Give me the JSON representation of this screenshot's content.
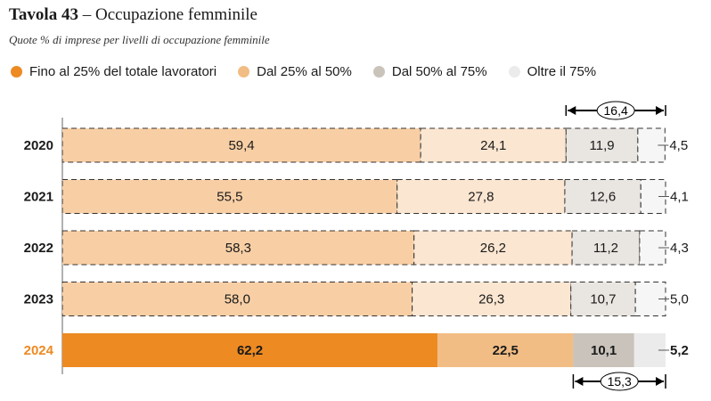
{
  "title": {
    "bold": "Tavola 43",
    "rest": " – Occupazione femminile"
  },
  "subtitle": "Quote % di imprese per livelli di occupazione femminile",
  "colors": {
    "solid": [
      "#ed8a22",
      "#f1bd84",
      "#c9c3bb",
      "#ebebeb"
    ],
    "light": [
      "#f8cfa5",
      "#fbe6d1",
      "#e9e5e1",
      "#f6f6f6"
    ],
    "highlight_year": "#ed8a22"
  },
  "chart_data": {
    "type": "bar",
    "orientation": "horizontal",
    "stacked": true,
    "categories": [
      "2020",
      "2021",
      "2022",
      "2023",
      "2024"
    ],
    "series": [
      {
        "name": "Fino al 25% del totale lavoratori",
        "values": [
          59.4,
          55.5,
          58.3,
          58.0,
          62.2
        ],
        "labels": [
          "59,4",
          "55,5",
          "58,3",
          "58,0",
          "62,2"
        ]
      },
      {
        "name": "Dal 25% al 50%",
        "values": [
          24.1,
          27.8,
          26.2,
          26.3,
          22.5
        ],
        "labels": [
          "24,1",
          "27,8",
          "26,2",
          "26,3",
          "22,5"
        ]
      },
      {
        "name": "Dal 50% al 75%",
        "values": [
          11.9,
          12.6,
          11.2,
          10.7,
          10.1
        ],
        "labels": [
          "11,9",
          "12,6",
          "11,2",
          "10,7",
          "10,1"
        ]
      },
      {
        "name": "Oltre il 75%",
        "values": [
          4.5,
          4.1,
          4.3,
          5.0,
          5.2
        ],
        "labels": [
          "4,5",
          "4,1",
          "4,3",
          "5,0",
          "5,2"
        ]
      }
    ],
    "highlight_category": "2024",
    "xlim": [
      0,
      100
    ],
    "annotations": [
      {
        "label": "16,4",
        "category": "2020",
        "from": 83.5,
        "to": 100,
        "position": "top"
      },
      {
        "label": "15,3",
        "category": "2024",
        "from": 84.7,
        "to": 100,
        "position": "bottom"
      }
    ]
  }
}
